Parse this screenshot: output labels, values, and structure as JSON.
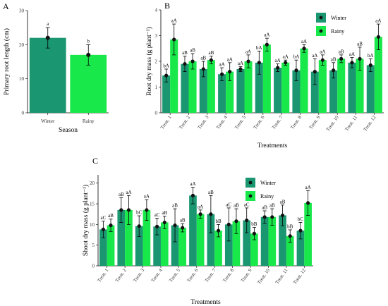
{
  "chart_data": [
    {
      "panel": "A",
      "type": "bar",
      "categories": [
        "Winter",
        "Rainy"
      ],
      "values": [
        22,
        17
      ],
      "errors": [
        3,
        3
      ],
      "significance": [
        "a",
        "b"
      ],
      "xlabel": "Season",
      "ylabel": "Primary root length (cm)",
      "ylim": [
        0,
        30
      ],
      "yticks": [
        0,
        10,
        20,
        30
      ],
      "colors": [
        "#1a9671",
        "#19e84a"
      ],
      "grid": false
    },
    {
      "panel": "B",
      "type": "bar",
      "categories": [
        "Treat. 1",
        "Treat. 2",
        "Treat. 3",
        "Treat. 4",
        "Treat. 5",
        "Treat. 6",
        "Treat. 7",
        "Treat. 8",
        "Treat. 9",
        "Treat. 10",
        "Treat. 11",
        "Treat. 12"
      ],
      "xlabel": "Treatments",
      "ylabel": "Root dry mass (g plant⁻¹)",
      "ylim": [
        0,
        4
      ],
      "yticks": [
        0,
        1,
        2,
        3,
        4
      ],
      "legend_position": "top-right",
      "grid": false,
      "series": [
        {
          "name": "Winter",
          "color": "#1a9671",
          "values": [
            1.45,
            1.9,
            1.7,
            1.5,
            1.7,
            1.95,
            1.75,
            1.65,
            1.6,
            1.65,
            1.95,
            1.85
          ],
          "errors": [
            0.25,
            0.3,
            0.3,
            0.25,
            0.1,
            0.45,
            0.15,
            0.4,
            0.5,
            0.3,
            0.2,
            0.25
          ],
          "significance": [
            "bA",
            "aB",
            "aB",
            "aA",
            "aA",
            "bA",
            "aA",
            "bA",
            "aA",
            "aB",
            "aA",
            "bA"
          ]
        },
        {
          "name": "Rainy",
          "color": "#19e84a",
          "values": [
            2.85,
            2.0,
            2.05,
            1.6,
            2.0,
            2.65,
            1.95,
            2.5,
            2.05,
            2.1,
            2.1,
            2.95
          ],
          "errors": [
            0.6,
            0.3,
            0.15,
            0.35,
            0.25,
            0.25,
            0.1,
            0.15,
            0.2,
            0.15,
            0.45,
            0.5
          ],
          "significance": [
            "aA",
            "aB",
            "aB",
            "aA",
            "aA",
            "aA",
            "aA",
            "aA",
            "aA",
            "aB",
            "aB",
            "aA"
          ]
        }
      ]
    },
    {
      "panel": "C",
      "type": "bar",
      "categories": [
        "Treat. 1",
        "Treat. 2",
        "Treat. 3",
        "Treat. 4",
        "Treat. 5",
        "Treat. 6",
        "Treat. 7",
        "Treat. 8",
        "Treat. 9",
        "Treat. 10",
        "Treat. 11",
        "Treat. 12"
      ],
      "xlabel": "Treatments",
      "ylabel": "Shoot dry mass (g plant⁻¹)",
      "ylim": [
        0,
        22
      ],
      "yticks": [
        0,
        5,
        10,
        15,
        20
      ],
      "legend_position": "top-right",
      "grid": false,
      "series": [
        {
          "name": "Winter",
          "color": "#1a9671",
          "values": [
            8.8,
            13.5,
            9.6,
            9.5,
            9.8,
            17.0,
            12.5,
            10.0,
            11.0,
            11.8,
            12.2,
            8.5
          ],
          "errors": [
            2.0,
            3.0,
            2.5,
            2.0,
            4.0,
            2.0,
            4.5,
            4.0,
            3.0,
            1.5,
            2.5,
            2.0
          ],
          "significance": [
            "aC",
            "aB",
            "bC",
            "aC",
            "aB",
            "aA",
            "aB",
            "aC",
            "aC",
            "aB",
            "aB",
            "bC"
          ]
        },
        {
          "name": "Rainy",
          "color": "#19e84a",
          "values": [
            9.8,
            13.5,
            13.5,
            10.5,
            9.2,
            12.5,
            8.5,
            10.8,
            7.8,
            11.8,
            7.2,
            15.2
          ],
          "errors": [
            1.5,
            3.5,
            2.5,
            1.5,
            1.0,
            1.0,
            1.5,
            3.0,
            1.5,
            2.0,
            1.5,
            3.0
          ],
          "significance": [
            "aB",
            "aA",
            "aA",
            "aB",
            "aB",
            "aA",
            "bB",
            "aB",
            "bB",
            "aB",
            "bB",
            "aA"
          ]
        }
      ]
    }
  ]
}
